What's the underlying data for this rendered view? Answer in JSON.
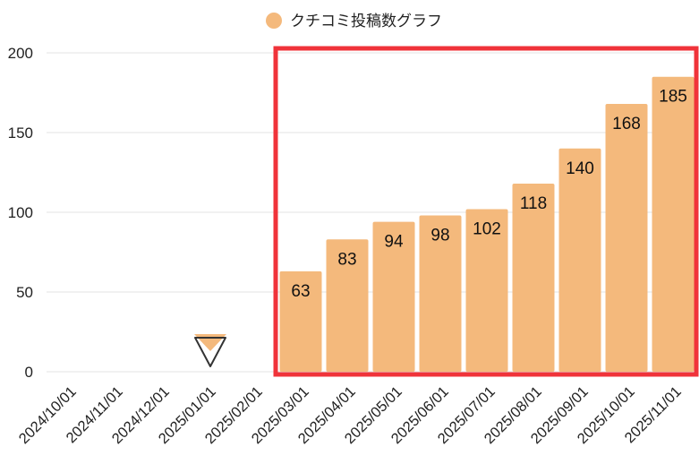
{
  "chart_data": {
    "type": "bar",
    "legend": {
      "label": "クチコミ投稿数グラフ",
      "position": "top-center"
    },
    "categories": [
      "2024/10/01",
      "2024/11/01",
      "2024/12/01",
      "2025/01/01",
      "2025/02/01",
      "2025/03/01",
      "2025/04/01",
      "2025/05/01",
      "2025/06/01",
      "2025/07/01",
      "2025/08/01",
      "2025/09/01",
      "2025/10/01",
      "2025/11/01"
    ],
    "series": [
      {
        "name": "クチコミ投稿数グラフ",
        "values": [
          null,
          null,
          null,
          null,
          null,
          63,
          83,
          94,
          98,
          102,
          118,
          140,
          168,
          185
        ]
      }
    ],
    "y_ticks": [
      "0",
      "50",
      "100",
      "150",
      "200"
    ],
    "ylim": [
      0,
      200
    ],
    "grid": true,
    "marker_category": "2025/01/01",
    "highlight": {
      "from_category": "2025/03/01",
      "to_category": "2025/11/01",
      "color": "#f0333a"
    },
    "colors": {
      "bar": "#f4b97c",
      "marker": "#f4b97c",
      "highlight": "#f0333a"
    }
  }
}
